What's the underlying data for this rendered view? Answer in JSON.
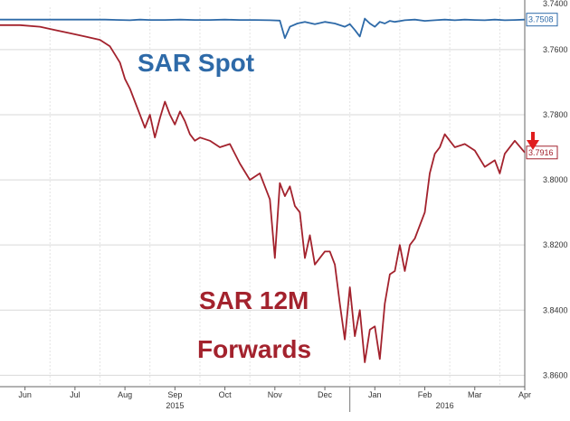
{
  "chart_data": {
    "type": "line",
    "y_axis": {
      "side": "right",
      "reversed": true,
      "range": [
        3.747,
        3.8635
      ],
      "ticks": [
        {
          "value": 3.76,
          "label": "3.7600"
        },
        {
          "value": 3.78,
          "label": "3.7800"
        },
        {
          "value": 3.8,
          "label": "3.8000"
        },
        {
          "value": 3.82,
          "label": "3.8200"
        },
        {
          "value": 3.84,
          "label": "3.8400"
        },
        {
          "value": 3.86,
          "label": "3.8600"
        }
      ],
      "partial_top_label": "3.7400"
    },
    "x_axis": {
      "range": [
        0,
        10.5
      ],
      "ticks": [
        {
          "pos": 0.5,
          "label": "Jun"
        },
        {
          "pos": 1.5,
          "label": "Jul"
        },
        {
          "pos": 2.5,
          "label": "Aug"
        },
        {
          "pos": 3.5,
          "label": "Sep"
        },
        {
          "pos": 4.5,
          "label": "Oct"
        },
        {
          "pos": 5.5,
          "label": "Nov"
        },
        {
          "pos": 6.5,
          "label": "Dec"
        },
        {
          "pos": 7.5,
          "label": "Jan"
        },
        {
          "pos": 8.5,
          "label": "Feb"
        },
        {
          "pos": 9.5,
          "label": "Mar"
        },
        {
          "pos": 10.5,
          "label": "Apr"
        }
      ],
      "year_labels": [
        {
          "pos": 3.5,
          "label": "2015"
        },
        {
          "pos": 8.9,
          "label": "2016"
        }
      ],
      "year_divider": 7.0
    },
    "grid": true,
    "series": [
      {
        "name": "SAR Spot",
        "color": "#2e6aa8",
        "last_value_label": "3.7508",
        "x": [
          0,
          0.3,
          0.6,
          0.9,
          1.2,
          1.5,
          1.8,
          2.1,
          2.4,
          2.6,
          2.8,
          3.0,
          3.3,
          3.6,
          3.9,
          4.2,
          4.5,
          4.8,
          5.1,
          5.4,
          5.6,
          5.7,
          5.8,
          5.95,
          6.1,
          6.3,
          6.5,
          6.7,
          6.9,
          7.0,
          7.1,
          7.2,
          7.3,
          7.4,
          7.5,
          7.6,
          7.7,
          7.8,
          7.9,
          8.1,
          8.3,
          8.5,
          8.7,
          8.9,
          9.1,
          9.3,
          9.5,
          9.7,
          9.9,
          10.1,
          10.3,
          10.5
        ],
        "y": [
          3.7508,
          3.7508,
          3.7508,
          3.7508,
          3.7508,
          3.7508,
          3.7508,
          3.7508,
          3.7509,
          3.751,
          3.7508,
          3.7509,
          3.7509,
          3.7508,
          3.7509,
          3.7509,
          3.7508,
          3.7509,
          3.7509,
          3.751,
          3.7511,
          3.7565,
          3.753,
          3.752,
          3.7515,
          3.7522,
          3.7515,
          3.752,
          3.753,
          3.7522,
          3.754,
          3.756,
          3.7505,
          3.752,
          3.753,
          3.7515,
          3.752,
          3.7512,
          3.7515,
          3.751,
          3.7508,
          3.7512,
          3.751,
          3.7508,
          3.751,
          3.7508,
          3.7509,
          3.751,
          3.7508,
          3.751,
          3.7509,
          3.7508
        ]
      },
      {
        "name": "SAR 12M Forwards",
        "color": "#a3222d",
        "last_value_label": "3.7916",
        "x": [
          0,
          0.4,
          0.8,
          1.1,
          1.4,
          1.7,
          2.0,
          2.2,
          2.4,
          2.5,
          2.6,
          2.7,
          2.8,
          2.9,
          3.0,
          3.1,
          3.2,
          3.3,
          3.4,
          3.5,
          3.6,
          3.7,
          3.8,
          3.9,
          4.0,
          4.2,
          4.4,
          4.6,
          4.8,
          5.0,
          5.2,
          5.4,
          5.5,
          5.6,
          5.7,
          5.8,
          5.9,
          6.0,
          6.1,
          6.2,
          6.3,
          6.4,
          6.5,
          6.6,
          6.7,
          6.8,
          6.9,
          7.0,
          7.1,
          7.2,
          7.3,
          7.4,
          7.5,
          7.6,
          7.7,
          7.8,
          7.9,
          8.0,
          8.1,
          8.2,
          8.3,
          8.4,
          8.5,
          8.6,
          8.7,
          8.8,
          8.9,
          9.0,
          9.1,
          9.3,
          9.5,
          9.7,
          9.9,
          10.0,
          10.1,
          10.3,
          10.5
        ],
        "y": [
          3.7525,
          3.7525,
          3.753,
          3.754,
          3.755,
          3.756,
          3.757,
          3.759,
          3.764,
          3.769,
          3.772,
          3.776,
          3.78,
          3.784,
          3.78,
          3.787,
          3.781,
          3.776,
          3.78,
          3.783,
          3.779,
          3.782,
          3.786,
          3.788,
          3.787,
          3.788,
          3.79,
          3.789,
          3.795,
          3.8,
          3.798,
          3.806,
          3.824,
          3.801,
          3.805,
          3.802,
          3.808,
          3.81,
          3.824,
          3.817,
          3.826,
          3.824,
          3.822,
          3.822,
          3.826,
          3.838,
          3.849,
          3.833,
          3.848,
          3.84,
          3.856,
          3.846,
          3.845,
          3.855,
          3.838,
          3.829,
          3.828,
          3.82,
          3.828,
          3.82,
          3.818,
          3.814,
          3.81,
          3.798,
          3.792,
          3.79,
          3.786,
          3.788,
          3.79,
          3.789,
          3.791,
          3.796,
          3.794,
          3.798,
          3.792,
          3.788,
          3.7916
        ]
      }
    ],
    "annotations": [
      {
        "text": "SAR Spot",
        "color": "#2e6aa8"
      },
      {
        "text": "SAR 12M",
        "color": "#a3222d"
      },
      {
        "text": "Forwards",
        "color": "#a3222d"
      }
    ],
    "arrow": {
      "color": "#e01e1e",
      "direction": "down"
    }
  }
}
